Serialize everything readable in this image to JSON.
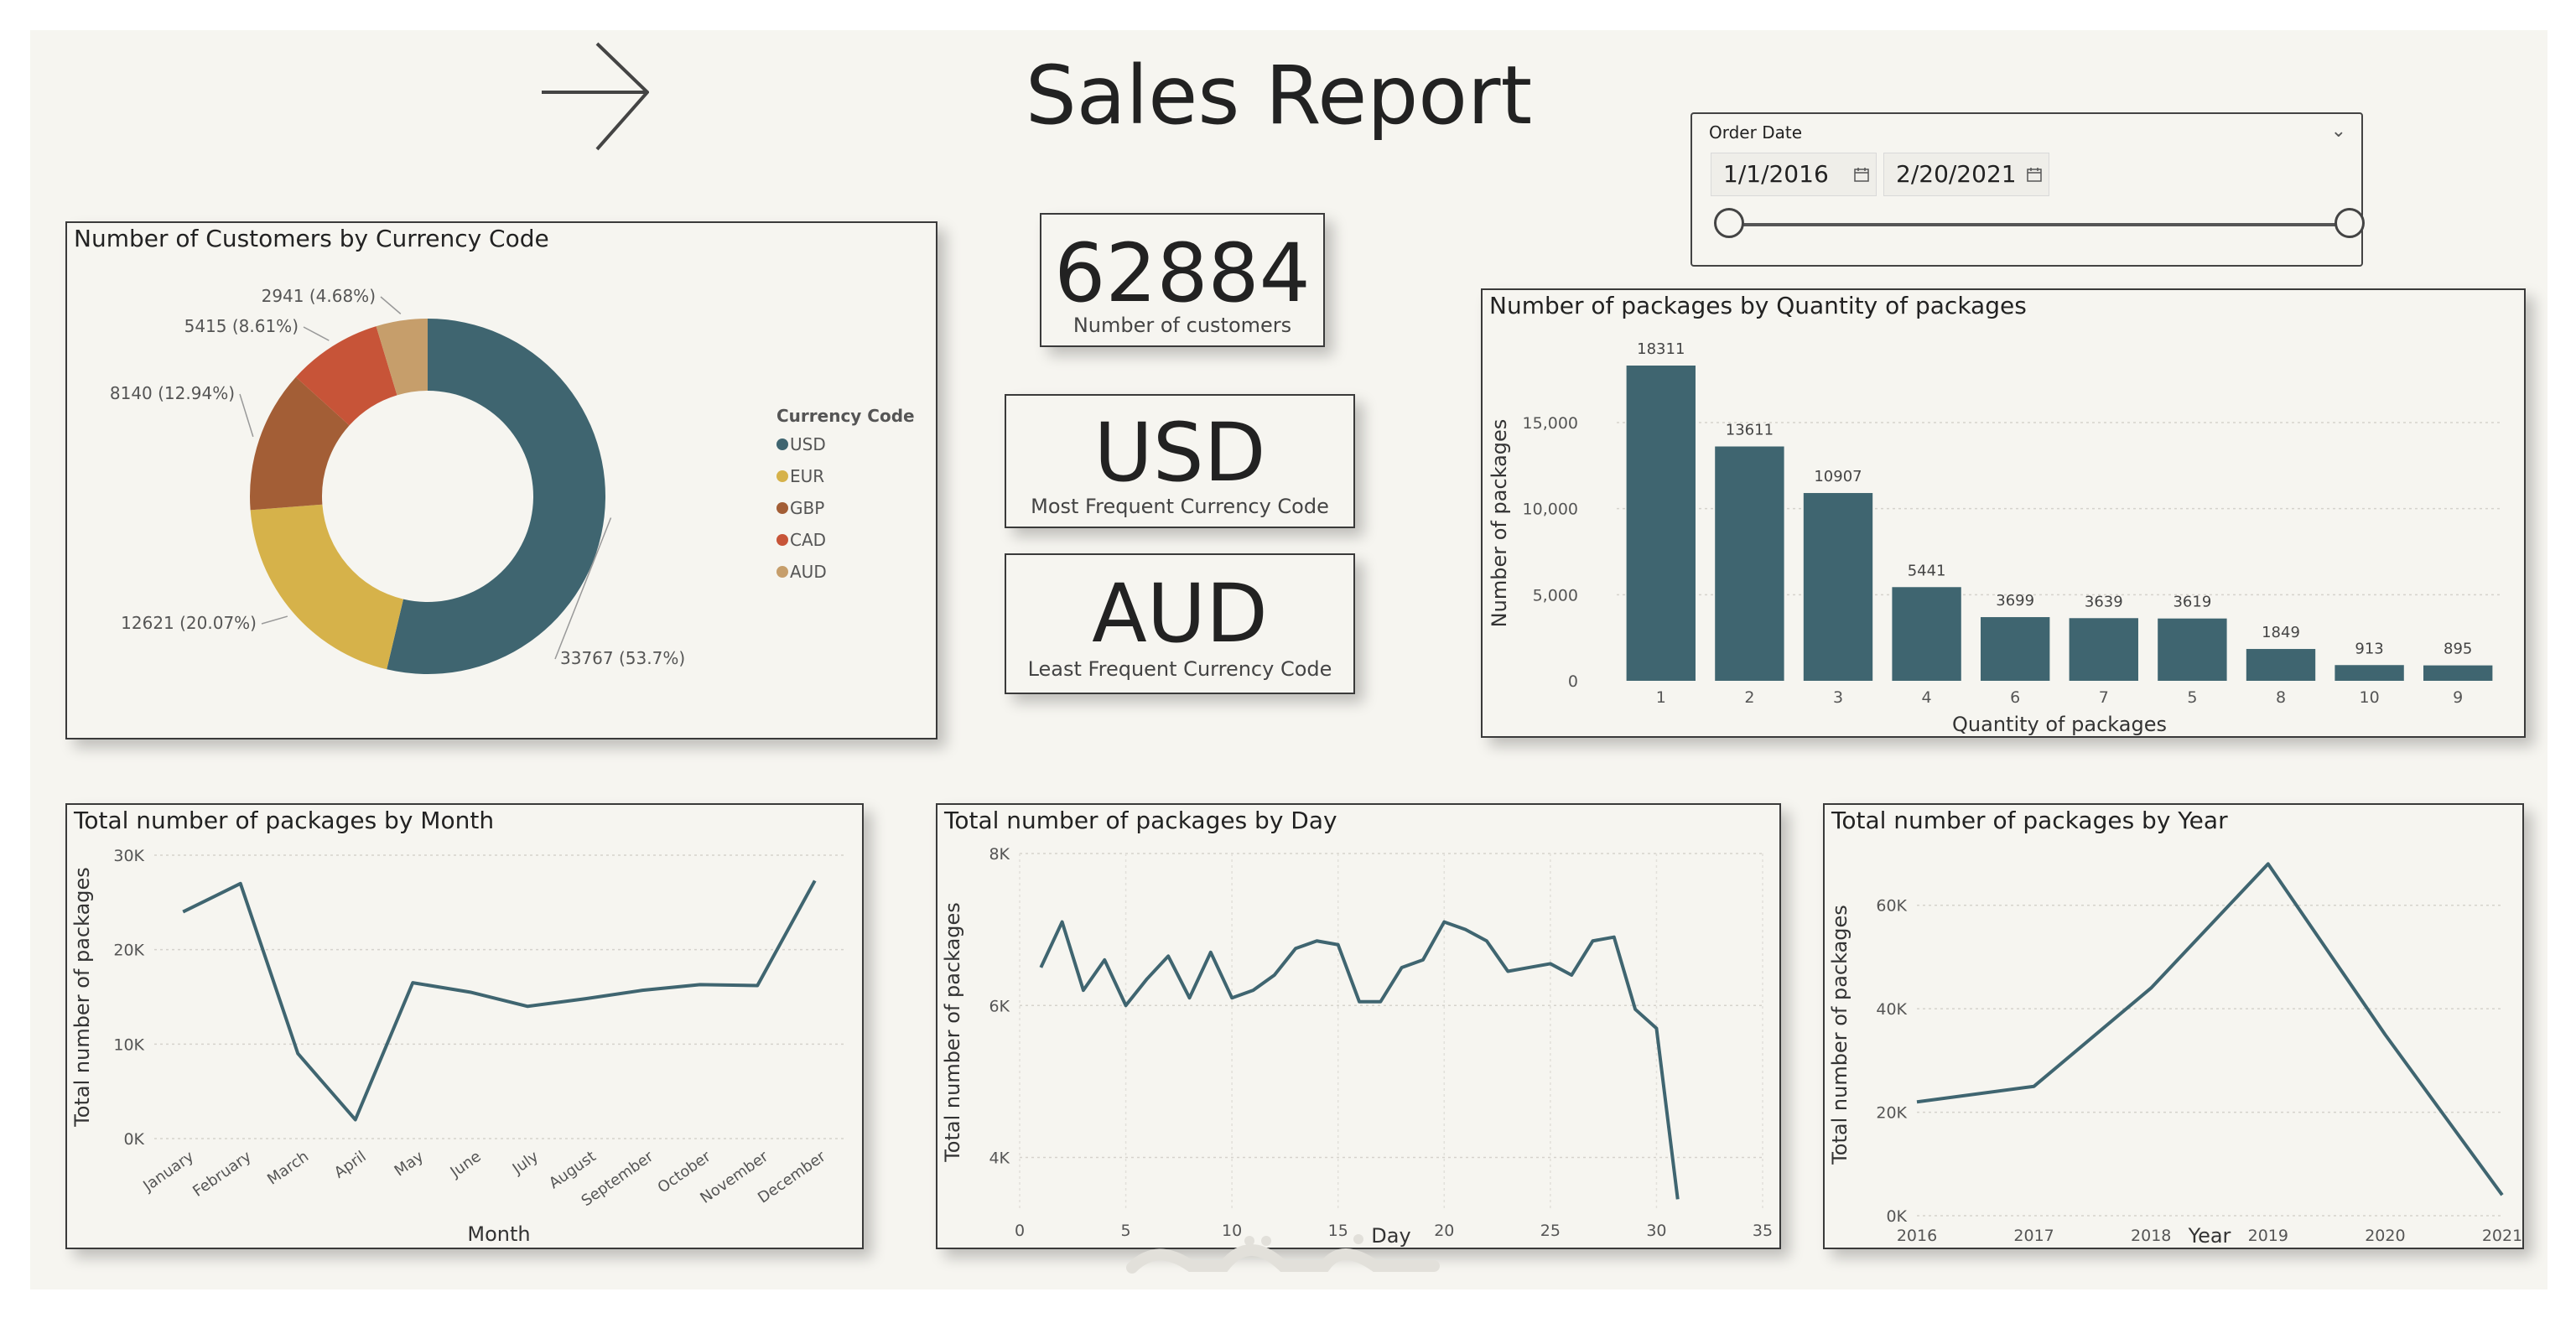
{
  "page": {
    "title": "Sales Report",
    "nav_icon": "arrow-right-icon"
  },
  "colors": {
    "background": "#f6f5f0",
    "teal": "#3f6570",
    "usd": "#3f6570",
    "eur": "#d6b24a",
    "gbp": "#a35e36",
    "cad": "#c75438",
    "aud": "#c69e6b"
  },
  "slicer": {
    "title": "Order Date",
    "start": "1/1/2016",
    "end": "2/20/2021",
    "range_fraction": [
      0.0,
      1.0
    ]
  },
  "kpis": [
    {
      "value": "62884",
      "label": "Number of customers"
    },
    {
      "value": "USD",
      "label": "Most Frequent Currency Code"
    },
    {
      "value": "AUD",
      "label": "Least Frequent Currency Code"
    }
  ],
  "chart_data": [
    {
      "type": "pie",
      "donut": true,
      "title": "Number of Customers by Currency Code",
      "legend_title": "Currency Code",
      "legend_position": "right",
      "categories": [
        "USD",
        "EUR",
        "GBP",
        "CAD",
        "AUD"
      ],
      "values": [
        33767,
        12621,
        8140,
        5415,
        2941
      ],
      "labels": [
        "33767 (53.7%)",
        "12621 (20.07%)",
        "8140 (12.94%)",
        "5415 (8.61%)",
        "2941 (4.68%)"
      ]
    },
    {
      "type": "bar",
      "title": "Number of packages by Quantity of packages",
      "xlabel": "Quantity of packages",
      "ylabel": "Number of packages",
      "categories": [
        "1",
        "2",
        "3",
        "4",
        "6",
        "7",
        "5",
        "8",
        "10",
        "9"
      ],
      "values": [
        18311,
        13611,
        10907,
        5441,
        3699,
        3639,
        3619,
        1849,
        913,
        895
      ],
      "data_labels": [
        "18311",
        "13611",
        "10907",
        "5441",
        "3699",
        "3639",
        "3619",
        "1849",
        "913",
        "895"
      ],
      "ylim": [
        0,
        18311
      ],
      "yticks": [
        "0",
        "5,000",
        "10,000",
        "15,000"
      ],
      "ytick_values": [
        0,
        5000,
        10000,
        15000
      ],
      "grid": true
    },
    {
      "type": "line",
      "title": "Total number of packages by Month",
      "xlabel": "Month",
      "ylabel": "Total number of packages",
      "categories": [
        "January",
        "February",
        "March",
        "April",
        "May",
        "June",
        "July",
        "August",
        "September",
        "October",
        "November",
        "December"
      ],
      "values": [
        24000,
        27000,
        9000,
        2000,
        16500,
        15500,
        14000,
        14800,
        15700,
        16300,
        16200,
        27300
      ],
      "ylim": [
        0,
        30000
      ],
      "yticks": [
        "0K",
        "10K",
        "20K",
        "30K"
      ],
      "ytick_values": [
        0,
        10000,
        20000,
        30000
      ],
      "grid": true
    },
    {
      "type": "line",
      "title": "Total number of packages by Day",
      "xlabel": "Day",
      "ylabel": "Total number of packages",
      "x": [
        1,
        2,
        3,
        4,
        5,
        6,
        7,
        8,
        9,
        10,
        11,
        12,
        13,
        14,
        15,
        16,
        17,
        18,
        19,
        20,
        21,
        22,
        23,
        24,
        25,
        26,
        27,
        28,
        29,
        30,
        31
      ],
      "values": [
        6500,
        7100,
        6200,
        6600,
        6000,
        6350,
        6650,
        6100,
        6700,
        6100,
        6200,
        6400,
        6750,
        6850,
        6800,
        6050,
        6050,
        6500,
        6600,
        7100,
        7000,
        6850,
        6450,
        6500,
        6550,
        6400,
        6850,
        6900,
        5950,
        5700,
        3450
      ],
      "xlim": [
        0,
        35
      ],
      "ylim": [
        3300,
        8000
      ],
      "xticks": [
        "0",
        "5",
        "10",
        "15",
        "20",
        "25",
        "30",
        "35"
      ],
      "xtick_values": [
        0,
        5,
        10,
        15,
        20,
        25,
        30,
        35
      ],
      "yticks": [
        "4K",
        "6K",
        "8K"
      ],
      "ytick_values": [
        4000,
        6000,
        8000
      ],
      "grid": true
    },
    {
      "type": "line",
      "title": "Total number of packages by Year",
      "xlabel": "Year",
      "ylabel": "Total number of packages",
      "x": [
        2016,
        2017,
        2018,
        2019,
        2020,
        2021
      ],
      "values": [
        22000,
        25000,
        44000,
        68000,
        35000,
        4000
      ],
      "xlim": [
        2016,
        2021
      ],
      "ylim": [
        0,
        70000
      ],
      "xticks": [
        "2016",
        "2017",
        "2018",
        "2019",
        "2020",
        "2021"
      ],
      "xtick_values": [
        2016,
        2017,
        2018,
        2019,
        2020,
        2021
      ],
      "yticks": [
        "0K",
        "20K",
        "40K",
        "60K"
      ],
      "ytick_values": [
        0,
        20000,
        40000,
        60000
      ],
      "grid": true
    }
  ]
}
